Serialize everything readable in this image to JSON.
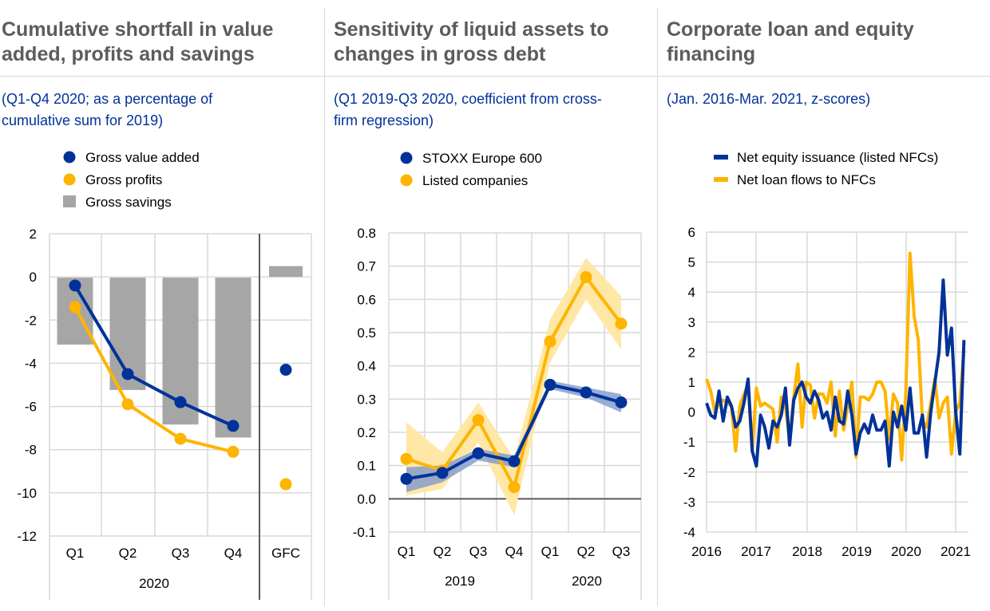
{
  "colors": {
    "blue": "#003299",
    "yellow": "#ffb400",
    "grey": "#a6a6a6",
    "title": "#5c5c5c",
    "subtitle": "#003299",
    "grid": "#d9d9d9",
    "yellow_band": "#ffe7a6",
    "blue_band": "#7f99cc"
  },
  "panels": [
    {
      "title_lines": [
        "Cumulative shortfall in value",
        "added, profits and savings"
      ],
      "subtitle_lines": [
        "(Q1-Q4 2020; as a percentage of",
        "cumulative sum for 2019)"
      ]
    },
    {
      "title_lines": [
        "Sensitivity of liquid assets to",
        "changes in gross debt"
      ],
      "subtitle_lines": [
        "(Q1 2019-Q3 2020, coefficient from cross-",
        "firm regression)"
      ]
    },
    {
      "title_lines": [
        "Corporate loan and equity",
        "financing"
      ],
      "subtitle_lines": [
        "(Jan. 2016-Mar. 2021, z-scores)"
      ]
    }
  ],
  "chart_data": [
    {
      "type": "bar",
      "title": "Cumulative shortfall in value added, profits and savings",
      "categories": [
        "Q1",
        "Q2",
        "Q3",
        "Q4",
        "GFC"
      ],
      "group_label": "2020",
      "yticks": [
        "2",
        "0",
        "-2",
        "-4",
        "-6",
        "-8",
        "-10",
        "-12"
      ],
      "ylim": [
        -12,
        2
      ],
      "grid": true,
      "legend": [
        {
          "label": "Gross value added",
          "marker": "circle",
          "color": "#003299"
        },
        {
          "label": "Gross profits",
          "marker": "circle",
          "color": "#ffb400"
        },
        {
          "label": "Gross savings",
          "marker": "square",
          "color": "#a6a6a6"
        }
      ],
      "series": [
        {
          "name": "Gross savings",
          "kind": "bar",
          "values": [
            -3.1,
            -5.2,
            -6.8,
            -7.4,
            0.5
          ]
        },
        {
          "name": "Gross value added",
          "kind": "line",
          "values": [
            -0.4,
            -4.5,
            -5.8,
            -6.9,
            -4.3
          ]
        },
        {
          "name": "Gross profits",
          "kind": "line",
          "values": [
            -1.4,
            -5.9,
            -7.5,
            -8.1,
            -9.6
          ]
        }
      ]
    },
    {
      "type": "line",
      "title": "Sensitivity of liquid assets to changes in gross debt",
      "categories": [
        "Q1",
        "Q2",
        "Q3",
        "Q4",
        "Q1",
        "Q2",
        "Q3"
      ],
      "groups": [
        "2019",
        "2020"
      ],
      "yticks": [
        "0.8",
        "0.7",
        "0.6",
        "0.5",
        "0.4",
        "0.3",
        "0.2",
        "0.1",
        "0.0",
        "-0.1"
      ],
      "ylim": [
        -0.1,
        0.8
      ],
      "grid": true,
      "legend": [
        {
          "label": "STOXX Europe 600",
          "marker": "circle",
          "color": "#003299"
        },
        {
          "label": "Listed companies",
          "marker": "circle",
          "color": "#ffb400"
        }
      ],
      "series": [
        {
          "name": "STOXX Europe 600",
          "values": [
            0.06,
            0.078,
            0.137,
            0.113,
            0.343,
            0.32,
            0.29
          ],
          "lower": [
            0.02,
            0.05,
            0.115,
            0.095,
            0.33,
            0.305,
            0.26
          ],
          "upper": [
            0.095,
            0.1,
            0.15,
            0.13,
            0.355,
            0.335,
            0.315
          ]
        },
        {
          "name": "Listed companies",
          "values": [
            0.12,
            0.085,
            0.237,
            0.035,
            0.473,
            0.667,
            0.527
          ],
          "lower": [
            0.01,
            0.03,
            0.17,
            -0.05,
            0.41,
            0.6,
            0.45
          ],
          "upper": [
            0.23,
            0.14,
            0.29,
            0.12,
            0.54,
            0.725,
            0.61
          ]
        }
      ]
    },
    {
      "type": "line",
      "title": "Corporate loan and equity financing",
      "xticks": [
        "2016",
        "2017",
        "2018",
        "2019",
        "2020",
        "2021"
      ],
      "yticks": [
        "6",
        "5",
        "4",
        "3",
        "2",
        "1",
        "0",
        "-1",
        "-2",
        "-3",
        "-4"
      ],
      "ylim": [
        -4,
        6
      ],
      "grid": true,
      "legend": [
        {
          "label": "Net equity issuance  (listed NFCs)",
          "marker": "line",
          "color": "#003299"
        },
        {
          "label": "Net loan flows to NFCs",
          "marker": "line",
          "color": "#ffb400"
        }
      ],
      "series": [
        {
          "name": "Net equity issuance  (listed NFCs)",
          "values": [
            0.3,
            -0.1,
            -0.2,
            0.7,
            -0.3,
            0.5,
            0.2,
            -0.5,
            -0.3,
            0.3,
            1.1,
            -1.3,
            -1.8,
            -0.1,
            -0.5,
            -1.2,
            -0.3,
            -0.5,
            -0.1,
            0.8,
            -1.1,
            0.4,
            0.8,
            1.0,
            0.5,
            0.3,
            0.7,
            0.4,
            -0.2,
            0.0,
            -0.6,
            0.5,
            -0.3,
            -0.4,
            0.7,
            -0.1,
            -1.4,
            -0.7,
            -0.4,
            -0.7,
            -0.1,
            -0.6,
            -0.6,
            -0.3,
            -1.8,
            0.0,
            -0.5,
            0.2,
            -0.6,
            0.8,
            -0.7,
            -0.7,
            -0.1,
            -1.5,
            0.0,
            1.0,
            2.0,
            4.4,
            1.9,
            2.8,
            0.0,
            -1.4,
            2.4
          ]
        },
        {
          "name": "Net loan flows to NFCs",
          "values": [
            1.1,
            0.7,
            0.0,
            0.3,
            0.4,
            0.3,
            0.2,
            -1.3,
            0.2,
            0.6,
            0.9,
            -1.3,
            0.8,
            0.2,
            0.3,
            0.2,
            0.1,
            -1.0,
            0.5,
            0.2,
            -0.9,
            0.5,
            1.6,
            -0.5,
            1.0,
            0.9,
            -0.2,
            0.6,
            0.6,
            0.3,
            1.0,
            -0.8,
            0.7,
            -0.6,
            0.2,
            1.0,
            -1.5,
            0.5,
            0.5,
            0.4,
            0.6,
            1.0,
            1.0,
            0.7,
            -0.9,
            0.6,
            0.3,
            -1.6,
            0.7,
            5.3,
            3.2,
            2.4,
            -0.3,
            -0.5,
            0.3,
            1.1,
            -0.2,
            0.3,
            0.5,
            -1.4,
            0.0,
            0.3,
            2.1
          ]
        }
      ]
    }
  ]
}
